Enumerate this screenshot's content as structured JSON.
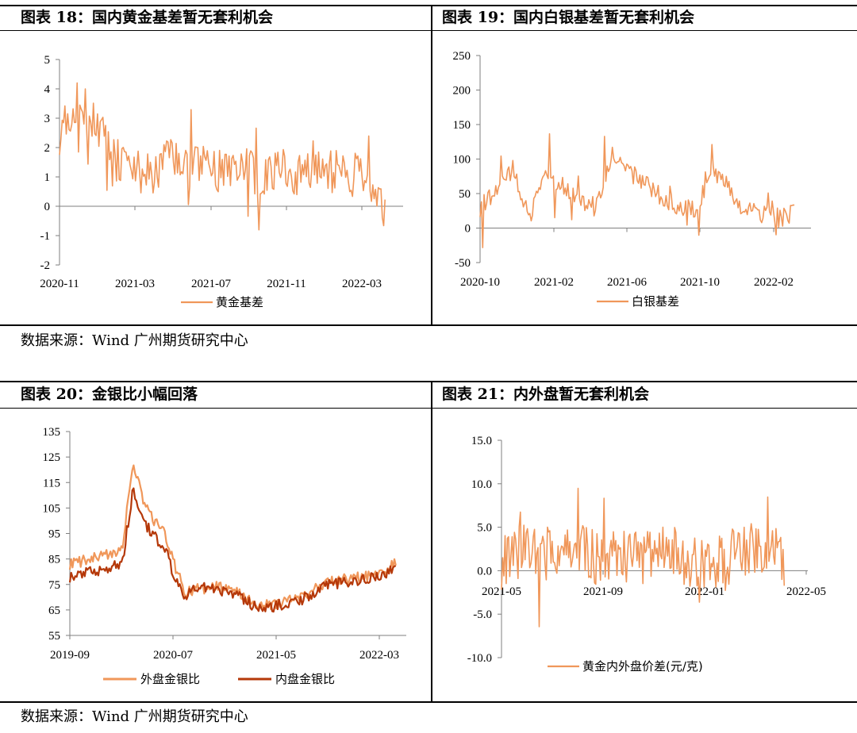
{
  "panels": [
    {
      "title": "图表 18：国内黄金基差暂无套利机会"
    },
    {
      "title": "图表 19：国内白银基差暂无套利机会"
    },
    {
      "title": "图表 20：金银比小幅回落"
    },
    {
      "title": "图表 21：内外盘暂无套利机会"
    }
  ],
  "sources": [
    "数据来源：Wind 广州期货研究中心",
    "数据来源：Wind 广州期货研究中心"
  ],
  "colors": {
    "orange": "#f0975a",
    "darkred": "#b53809",
    "axis": "#7f7f7f",
    "frame": "#000000"
  },
  "chart_data": [
    {
      "type": "line",
      "title": "",
      "xlabel": "",
      "ylabel": "",
      "ylim": [
        -2,
        5
      ],
      "yticks": [
        "5",
        "4",
        "3",
        "2",
        "1",
        "0",
        "-1",
        "-2"
      ],
      "xticks": [
        "2020-11",
        "2021-03",
        "2021-07",
        "2021-11",
        "2022-03"
      ],
      "legend": "bottom",
      "series": [
        {
          "name": "黄金基差",
          "x": [
            "2020-11",
            "2020-12",
            "2021-01",
            "2021-02",
            "2021-03",
            "2021-04",
            "2021-05",
            "2021-06",
            "2021-07",
            "2021-08",
            "2021-09",
            "2021-10",
            "2021-11",
            "2021-12",
            "2022-01",
            "2022-02",
            "2022-03",
            "2022-04",
            "2022-05"
          ],
          "values": [
            2.5,
            3.6,
            2.9,
            1.6,
            1.2,
            1.1,
            1.6,
            1.4,
            1.3,
            1.2,
            1.3,
            1.0,
            1.1,
            1.0,
            1.2,
            1.3,
            1.1,
            1.0,
            -0.4
          ]
        }
      ]
    },
    {
      "type": "line",
      "title": "",
      "xlabel": "",
      "ylabel": "",
      "ylim": [
        -50,
        250
      ],
      "yticks": [
        "250",
        "200",
        "150",
        "100",
        "50",
        "0",
        "-50"
      ],
      "xticks": [
        "2020-10",
        "2021-02",
        "2021-06",
        "2021-10",
        "2022-02"
      ],
      "legend": "bottom",
      "series": [
        {
          "name": "白银基差",
          "x": [
            "2020-10",
            "2020-11",
            "2020-12",
            "2021-01",
            "2021-02",
            "2021-03",
            "2021-04",
            "2021-05",
            "2021-06",
            "2021-07",
            "2021-08",
            "2021-09",
            "2021-10",
            "2021-11",
            "2021-12",
            "2022-01",
            "2022-02",
            "2022-03",
            "2022-04",
            "2022-05"
          ],
          "values": [
            30,
            55,
            85,
            15,
            80,
            60,
            40,
            30,
            105,
            80,
            65,
            45,
            30,
            25,
            80,
            60,
            25,
            20,
            15,
            20
          ]
        }
      ]
    },
    {
      "type": "line",
      "title": "",
      "xlabel": "",
      "ylabel": "",
      "ylim": [
        55,
        135
      ],
      "yticks": [
        "135",
        "125",
        "115",
        "105",
        "95",
        "85",
        "75",
        "65",
        "55"
      ],
      "xticks": [
        "2019-09",
        "2020-07",
        "2021-05",
        "2022-03"
      ],
      "legend": "bottom",
      "series": [
        {
          "name": "外盘金银比",
          "x": [
            "2019-09",
            "2019-11",
            "2020-01",
            "2020-02",
            "2020-03",
            "2020-04",
            "2020-05",
            "2020-06",
            "2020-07",
            "2020-08",
            "2020-09",
            "2020-11",
            "2021-01",
            "2021-03",
            "2021-05",
            "2021-07",
            "2021-09",
            "2021-11",
            "2022-01",
            "2022-03",
            "2022-04"
          ],
          "values": [
            83,
            85,
            87,
            90,
            122,
            108,
            100,
            96,
            82,
            72,
            73,
            74,
            72,
            66,
            68,
            70,
            75,
            77,
            78,
            80,
            84
          ]
        },
        {
          "name": "内盘金银比",
          "x": [
            "2019-09",
            "2019-11",
            "2020-01",
            "2020-02",
            "2020-03",
            "2020-04",
            "2020-05",
            "2020-06",
            "2020-07",
            "2020-08",
            "2020-09",
            "2020-11",
            "2021-01",
            "2021-03",
            "2021-05",
            "2021-07",
            "2021-09",
            "2021-11",
            "2022-01",
            "2022-03",
            "2022-04"
          ],
          "values": [
            78,
            80,
            82,
            84,
            112,
            100,
            94,
            90,
            77,
            70,
            74,
            73,
            71,
            65,
            67,
            69,
            74,
            76,
            77,
            79,
            83
          ]
        }
      ]
    },
    {
      "type": "line",
      "title": "",
      "xlabel": "",
      "ylabel": "",
      "ylim": [
        -10,
        15
      ],
      "yticks": [
        "15.0",
        "10.0",
        "5.0",
        "0.0",
        "-5.0",
        "-10.0"
      ],
      "xticks": [
        "2021-05",
        "2021-09",
        "2022-01",
        "2022-05"
      ],
      "legend": "bottom",
      "series": [
        {
          "name": "黄金内外盘价差(元/克)",
          "x": [
            "2021-05",
            "2021-06",
            "2021-07",
            "2021-08",
            "2021-09",
            "2021-10",
            "2021-11",
            "2021-12",
            "2022-01",
            "2022-02",
            "2022-03",
            "2022-04",
            "2022-05"
          ],
          "values": [
            1.0,
            2.5,
            2.0,
            3.0,
            1.5,
            2.0,
            1.0,
            2.5,
            1.0,
            0.5,
            2.0,
            3.0,
            1.0
          ]
        }
      ]
    }
  ]
}
